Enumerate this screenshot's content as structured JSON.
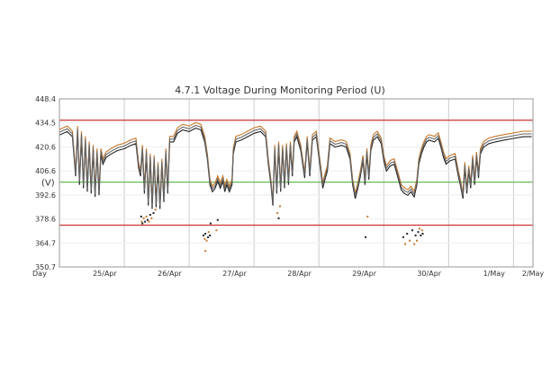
{
  "chart_data": {
    "type": "line",
    "title": "4.7.1 Voltage During Monitoring Period (U)",
    "ylabel": "(V)",
    "xlabel": "Day",
    "ylim": [
      350.7,
      448.4
    ],
    "yticks": [
      "448.4",
      "434.5",
      "420.6",
      "406.6",
      "392.6",
      "378.6",
      "364.7",
      "350.7"
    ],
    "xlim": [
      0,
      7.3
    ],
    "x_ticks": [
      {
        "x": 0.7,
        "label": "25/Apr"
      },
      {
        "x": 1.7,
        "label": "26/Apr"
      },
      {
        "x": 2.7,
        "label": "27/Apr"
      },
      {
        "x": 3.7,
        "label": "28/Apr"
      },
      {
        "x": 4.7,
        "label": "29/Apr"
      },
      {
        "x": 5.7,
        "label": "30/Apr"
      },
      {
        "x": 6.7,
        "label": "1/May"
      },
      {
        "x": 7.3,
        "label": "2/May"
      }
    ],
    "grid": true,
    "reference_lines": [
      {
        "y": 436.0,
        "color": "#cc3333"
      },
      {
        "y": 400.0,
        "color": "#66bb55"
      },
      {
        "y": 375.0,
        "color": "#cc3333"
      }
    ],
    "series_colors": {
      "main": "#666666",
      "max": "#c8782a",
      "min": "#222222"
    },
    "series": [
      {
        "values": [
          [
            0.0,
            429
          ],
          [
            0.12,
            431
          ],
          [
            0.2,
            428
          ],
          [
            0.25,
            405
          ],
          [
            0.28,
            431
          ],
          [
            0.31,
            400
          ],
          [
            0.34,
            428
          ],
          [
            0.37,
            398
          ],
          [
            0.4,
            425
          ],
          [
            0.43,
            396
          ],
          [
            0.46,
            422
          ],
          [
            0.49,
            395
          ],
          [
            0.52,
            420
          ],
          [
            0.55,
            393
          ],
          [
            0.58,
            418
          ],
          [
            0.61,
            394
          ],
          [
            0.64,
            418
          ],
          [
            0.67,
            412
          ],
          [
            0.72,
            416
          ],
          [
            0.8,
            418
          ],
          [
            0.9,
            420
          ],
          [
            1.0,
            421
          ],
          [
            1.1,
            423
          ],
          [
            1.18,
            424
          ],
          [
            1.22,
            410
          ],
          [
            1.25,
            405
          ],
          [
            1.28,
            420
          ],
          [
            1.31,
            395
          ],
          [
            1.34,
            418
          ],
          [
            1.37,
            388
          ],
          [
            1.4,
            415
          ],
          [
            1.43,
            386
          ],
          [
            1.46,
            414
          ],
          [
            1.49,
            387
          ],
          [
            1.52,
            410
          ],
          [
            1.55,
            386
          ],
          [
            1.58,
            412
          ],
          [
            1.61,
            390
          ],
          [
            1.64,
            418
          ],
          [
            1.67,
            395
          ],
          [
            1.7,
            425
          ],
          [
            1.76,
            425
          ],
          [
            1.82,
            430
          ],
          [
            1.9,
            432
          ],
          [
            2.0,
            431
          ],
          [
            2.1,
            433
          ],
          [
            2.18,
            432
          ],
          [
            2.24,
            425
          ],
          [
            2.28,
            415
          ],
          [
            2.32,
            400
          ],
          [
            2.36,
            396
          ],
          [
            2.4,
            398
          ],
          [
            2.44,
            402
          ],
          [
            2.48,
            398
          ],
          [
            2.52,
            402
          ],
          [
            2.55,
            396
          ],
          [
            2.58,
            400
          ],
          [
            2.62,
            396
          ],
          [
            2.66,
            400
          ],
          [
            2.68,
            418
          ],
          [
            2.72,
            425
          ],
          [
            2.8,
            426
          ],
          [
            2.9,
            428
          ],
          [
            3.0,
            430
          ],
          [
            3.1,
            431
          ],
          [
            3.18,
            428
          ],
          [
            3.22,
            412
          ],
          [
            3.26,
            400
          ],
          [
            3.29,
            388
          ],
          [
            3.32,
            420
          ],
          [
            3.35,
            395
          ],
          [
            3.38,
            422
          ],
          [
            3.41,
            396
          ],
          [
            3.44,
            420
          ],
          [
            3.47,
            398
          ],
          [
            3.5,
            421
          ],
          [
            3.53,
            400
          ],
          [
            3.56,
            422
          ],
          [
            3.59,
            405
          ],
          [
            3.62,
            425
          ],
          [
            3.66,
            428
          ],
          [
            3.72,
            420
          ],
          [
            3.78,
            404
          ],
          [
            3.82,
            425
          ],
          [
            3.86,
            405
          ],
          [
            3.9,
            426
          ],
          [
            3.96,
            428
          ],
          [
            4.02,
            410
          ],
          [
            4.06,
            398
          ],
          [
            4.1,
            404
          ],
          [
            4.13,
            408
          ],
          [
            4.17,
            424
          ],
          [
            4.25,
            422
          ],
          [
            4.35,
            423
          ],
          [
            4.42,
            422
          ],
          [
            4.48,
            415
          ],
          [
            4.52,
            400
          ],
          [
            4.56,
            392
          ],
          [
            4.6,
            398
          ],
          [
            4.64,
            405
          ],
          [
            4.68,
            414
          ],
          [
            4.71,
            400
          ],
          [
            4.74,
            418
          ],
          [
            4.77,
            403
          ],
          [
            4.8,
            420
          ],
          [
            4.84,
            426
          ],
          [
            4.9,
            428
          ],
          [
            4.96,
            424
          ],
          [
            5.0,
            414
          ],
          [
            5.04,
            408
          ],
          [
            5.1,
            411
          ],
          [
            5.16,
            412
          ],
          [
            5.22,
            404
          ],
          [
            5.27,
            397
          ],
          [
            5.32,
            395
          ],
          [
            5.37,
            394
          ],
          [
            5.42,
            396
          ],
          [
            5.47,
            393
          ],
          [
            5.51,
            400
          ],
          [
            5.54,
            412
          ],
          [
            5.58,
            418
          ],
          [
            5.62,
            422
          ],
          [
            5.66,
            425
          ],
          [
            5.7,
            426
          ],
          [
            5.78,
            425
          ],
          [
            5.84,
            427
          ],
          [
            5.88,
            422
          ],
          [
            5.92,
            416
          ],
          [
            5.96,
            412
          ],
          [
            6.02,
            414
          ],
          [
            6.1,
            415
          ],
          [
            6.15,
            405
          ],
          [
            6.18,
            400
          ],
          [
            6.22,
            392
          ],
          [
            6.25,
            410
          ],
          [
            6.28,
            395
          ],
          [
            6.31,
            408
          ],
          [
            6.34,
            398
          ],
          [
            6.37,
            414
          ],
          [
            6.4,
            400
          ],
          [
            6.43,
            416
          ],
          [
            6.46,
            404
          ],
          [
            6.49,
            418
          ],
          [
            6.54,
            422
          ],
          [
            6.62,
            424
          ],
          [
            6.72,
            425
          ],
          [
            6.85,
            426
          ],
          [
            7.0,
            427
          ],
          [
            7.15,
            428
          ],
          [
            7.28,
            428
          ]
        ]
      }
    ],
    "scatter_points": [
      [
        1.26,
        380
      ],
      [
        1.27,
        377
      ],
      [
        1.28,
        376
      ],
      [
        1.3,
        379
      ],
      [
        1.32,
        377
      ],
      [
        1.34,
        380
      ],
      [
        1.36,
        378
      ],
      [
        1.38,
        377
      ],
      [
        1.4,
        381
      ],
      [
        1.42,
        379
      ],
      [
        1.45,
        382
      ],
      [
        1.48,
        384
      ],
      [
        2.22,
        369
      ],
      [
        2.24,
        367
      ],
      [
        2.25,
        370
      ],
      [
        2.27,
        366
      ],
      [
        2.29,
        368
      ],
      [
        2.3,
        371
      ],
      [
        2.32,
        369
      ],
      [
        2.25,
        360
      ],
      [
        2.33,
        376
      ],
      [
        2.42,
        372
      ],
      [
        2.44,
        378
      ],
      [
        3.36,
        382
      ],
      [
        3.38,
        379
      ],
      [
        3.4,
        386
      ],
      [
        4.72,
        368
      ],
      [
        4.75,
        380
      ],
      [
        5.3,
        368
      ],
      [
        5.33,
        364
      ],
      [
        5.36,
        370
      ],
      [
        5.4,
        366
      ],
      [
        5.44,
        372
      ],
      [
        5.47,
        364
      ],
      [
        5.49,
        369
      ],
      [
        5.51,
        366
      ],
      [
        5.53,
        371
      ],
      [
        5.55,
        373
      ],
      [
        5.57,
        369
      ],
      [
        5.59,
        372
      ],
      [
        5.6,
        370
      ]
    ]
  }
}
